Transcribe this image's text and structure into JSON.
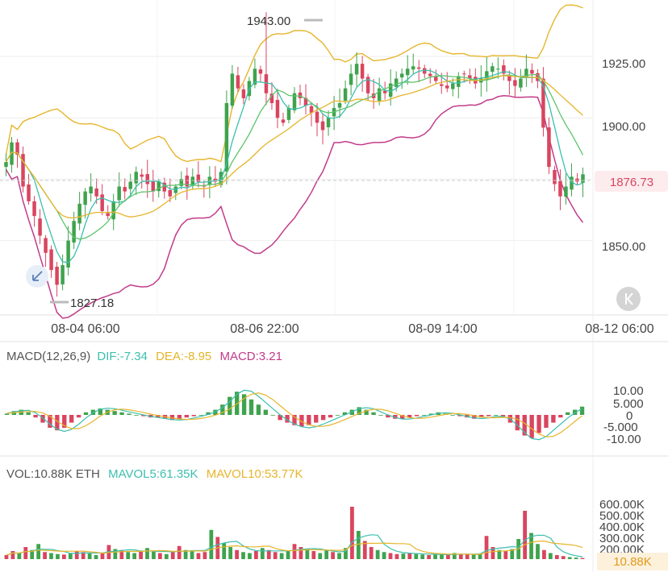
{
  "colors": {
    "up": "#3fa34d",
    "down": "#d9455f",
    "ma_teal": "#3cbfae",
    "ma_yellow": "#e6b52c",
    "ma_green": "#5cc46b",
    "boll": "#c23b8a",
    "grid": "#eeeeee",
    "text": "#444444",
    "price_tag_bg": "#fdecee",
    "price_tag_text": "#d9455f",
    "vol_tag_bg": "#fdf1dc",
    "vol_tag_text": "#e09a1c"
  },
  "price_panel": {
    "y_ticks": [
      "1925.00",
      "1900.00",
      "1850.00"
    ],
    "y_tick_values": [
      1925,
      1900,
      1850
    ],
    "current_price": "1876.73",
    "current_price_value": 1876.73,
    "high_label": "1943.00",
    "high_value": 1943.0,
    "low_label": "1827.18",
    "low_value": 1827.18,
    "x_labels": [
      "08-04 06:00",
      "08-06 22:00",
      "08-09 14:00",
      "08-12 06:00"
    ],
    "ylim": [
      1820,
      1948
    ]
  },
  "macd_panel": {
    "title": "MACD(12,26,9)",
    "dif": "DIF:-7.34",
    "dea": "DEA:-8.95",
    "macd": "MACD:3.21",
    "y_ticks": [
      "10.00",
      "5.000",
      "0",
      "-5.000",
      "-10.00"
    ]
  },
  "vol_panel": {
    "vol": "VOL:10.88K ETH",
    "mavol5": "MAVOL5:61.35K",
    "mavol10": "MAVOL10:53.77K",
    "y_ticks": [
      "600.00K",
      "500.00K",
      "400.00K",
      "300.00K",
      "200.00K"
    ],
    "current_tag": "10.88K"
  },
  "icons": {
    "collapse": "collapse-arrow-icon",
    "scroll_end": "scroll-to-latest-icon"
  },
  "chart_data": {
    "type": "candlestick",
    "title": "",
    "x_labels": [
      "08-04 06:00",
      "08-06 22:00",
      "08-09 14:00",
      "08-12 06:00"
    ],
    "ylim": [
      1820,
      1948
    ],
    "high": 1943.0,
    "low": 1827.18,
    "last": 1876.73,
    "close_series_approx": [
      1882,
      1890,
      1885,
      1872,
      1866,
      1860,
      1852,
      1845,
      1838,
      1832,
      1840,
      1850,
      1858,
      1865,
      1870,
      1872,
      1868,
      1862,
      1860,
      1866,
      1872,
      1870,
      1874,
      1878,
      1876,
      1873,
      1870,
      1874,
      1870,
      1868,
      1872,
      1875,
      1872,
      1876,
      1874,
      1872,
      1876,
      1874,
      1878,
      1906,
      1918,
      1912,
      1908,
      1915,
      1920,
      1918,
      1910,
      1906,
      1900,
      1898,
      1904,
      1910,
      1908,
      1905,
      1902,
      1898,
      1895,
      1900,
      1904,
      1906,
      1912,
      1918,
      1922,
      1916,
      1910,
      1908,
      1912,
      1910,
      1914,
      1916,
      1918,
      1920,
      1921,
      1920,
      1918,
      1917,
      1915,
      1913,
      1912,
      1914,
      1917,
      1918,
      1916,
      1914,
      1916,
      1919,
      1921,
      1920,
      1918,
      1915,
      1913,
      1916,
      1920,
      1918,
      1915,
      1896,
      1880,
      1873,
      1868,
      1872,
      1876,
      1874,
      1877
    ],
    "macd_histogram_approx": [
      0.5,
      1.5,
      2,
      1,
      -1,
      -3,
      -5,
      -6,
      -5,
      -3,
      -1,
      1,
      2,
      2.5,
      2,
      1.5,
      1,
      0.5,
      0,
      -0.5,
      -1,
      -1,
      -1.5,
      -2,
      -1.5,
      -1,
      -0.5,
      0,
      1,
      2,
      4,
      7,
      9,
      8,
      6,
      4,
      2,
      0,
      -2,
      -3,
      -4,
      -4.5,
      -4,
      -3,
      -2,
      -1,
      0,
      1,
      2,
      3,
      2,
      1,
      0,
      -1,
      -1.5,
      -1.5,
      -1,
      -0.5,
      0,
      0.5,
      1,
      0.5,
      0,
      -0.5,
      -1,
      -1.5,
      -1,
      -0.5,
      0,
      -1,
      -3,
      -6,
      -8,
      -9,
      -7,
      -5,
      -3,
      -1,
      1,
      2,
      3.2
    ],
    "volume_approx_k": [
      40,
      80,
      60,
      120,
      90,
      150,
      70,
      60,
      50,
      45,
      60,
      80,
      70,
      55,
      40,
      60,
      140,
      100,
      90,
      70,
      60,
      80,
      110,
      75,
      60,
      50,
      70,
      130,
      90,
      80,
      60,
      70,
      290,
      220,
      160,
      120,
      90,
      70,
      60,
      80,
      110,
      90,
      70,
      60,
      80,
      150,
      120,
      100,
      80,
      60,
      90,
      70,
      60,
      110,
      520,
      280,
      180,
      120,
      90,
      70,
      60,
      50,
      55,
      60,
      50,
      45,
      40,
      45,
      50,
      40,
      60,
      50,
      45,
      50,
      55,
      230,
      120,
      90,
      80,
      100,
      200,
      480,
      260,
      150,
      90,
      60,
      40,
      30,
      20,
      15,
      10.88
    ]
  }
}
